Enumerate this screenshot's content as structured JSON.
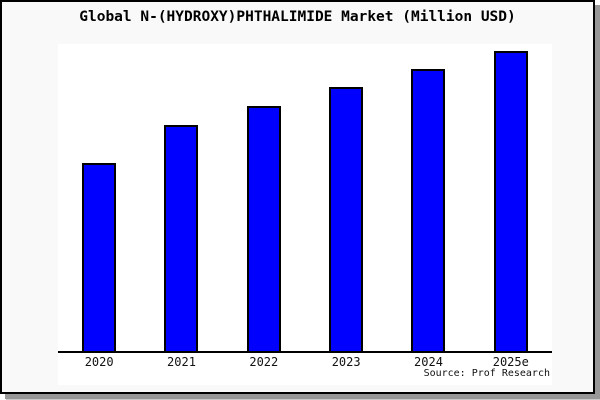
{
  "chart_data": {
    "type": "bar",
    "title": "Global N-(HYDROXY)PHTHALIMIDE Market (Million USD)",
    "categories": [
      "2020",
      "2021",
      "2022",
      "2023",
      "2024",
      "2025e"
    ],
    "values": [
      62.7,
      75.3,
      81.7,
      88.0,
      94.0,
      100.0
    ],
    "values_note": "relative index estimated from bar heights, 2025e = 100; y-axis has no visible scale",
    "xlabel": "",
    "ylabel": "",
    "ylim": [
      0,
      102.3
    ],
    "grid": false,
    "legend": false,
    "bar_color": "#0000fe",
    "bar_border_color": "#000000",
    "plot_background": "#ffffff",
    "card_background": "#f9f9f9",
    "shadow_color": "#979797",
    "source": "Source: Prof Research"
  }
}
